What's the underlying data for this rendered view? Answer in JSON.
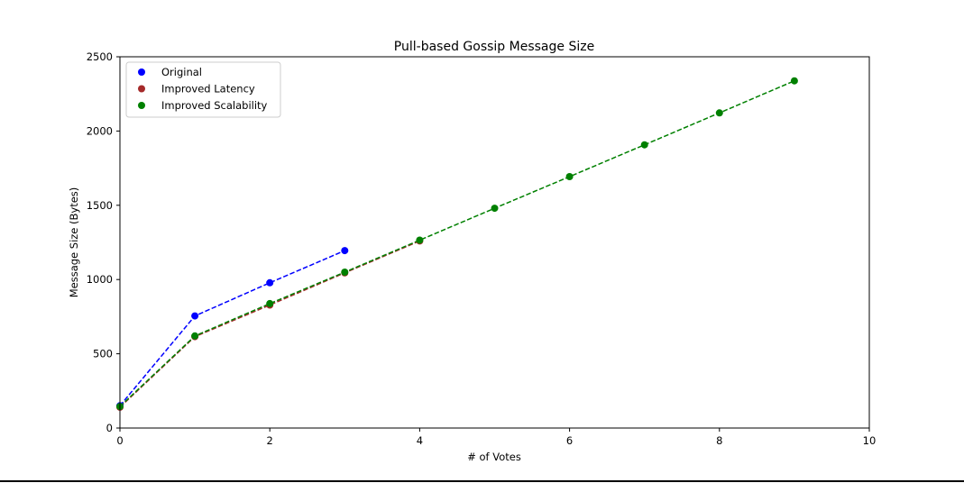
{
  "chart_data": {
    "type": "line",
    "title": "Pull-based Gossip Message Size",
    "xlabel": "# of Votes",
    "ylabel": "Message Size (Bytes)",
    "xlim": [
      0,
      10
    ],
    "ylim": [
      0,
      2500
    ],
    "xticks": [
      0,
      2,
      4,
      6,
      8,
      10
    ],
    "yticks": [
      0,
      500,
      1000,
      1500,
      2000,
      2500
    ],
    "grid": false,
    "legend_position": "top-left",
    "series": [
      {
        "name": "Original",
        "color": "#0000ff",
        "x": [
          0,
          1,
          2,
          3
        ],
        "y": [
          150,
          755,
          978,
          1195
        ]
      },
      {
        "name": "Improved Latency",
        "color": "#a52a2a",
        "x": [
          0,
          1,
          2,
          3,
          4
        ],
        "y": [
          140,
          615,
          828,
          1045,
          1260
        ]
      },
      {
        "name": "Improved Scalability",
        "color": "#008000",
        "x": [
          0,
          1,
          2,
          3,
          4,
          5,
          6,
          7,
          8,
          9
        ],
        "y": [
          145,
          620,
          838,
          1050,
          1265,
          1480,
          1693,
          1907,
          2122,
          2338
        ]
      }
    ]
  }
}
